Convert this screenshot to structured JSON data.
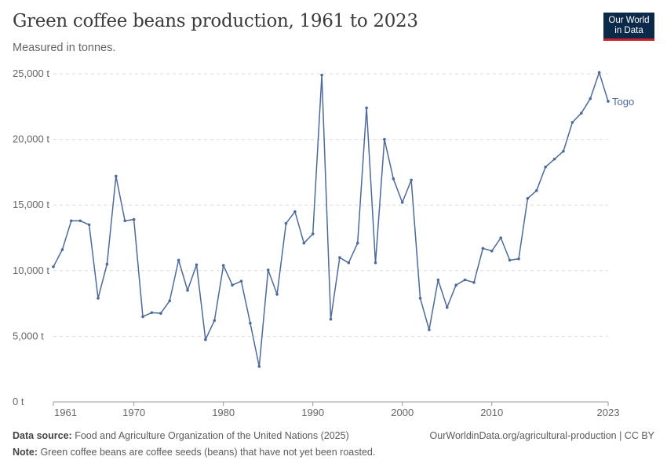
{
  "header": {
    "title": "Green coffee beans production, 1961 to 2023",
    "subtitle": "Measured in tonnes.",
    "logo_line1": "Our World",
    "logo_line2": "in Data"
  },
  "footer": {
    "source_label": "Data source:",
    "source_text": "Food and Agriculture Organization of the United Nations (2025)",
    "url_text": "OurWorldinData.org/agricultural-production | CC BY",
    "note_label": "Note:",
    "note_text": "Green coffee beans are coffee seeds (beans) that have not yet been roasted."
  },
  "colors": {
    "series": "#4c6a9c",
    "grid": "#dddddd",
    "axis_text": "#666666"
  },
  "chart_data": {
    "type": "line",
    "title": "Green coffee beans production, 1961 to 2023",
    "xlabel": "",
    "ylabel": "",
    "xlim": [
      1961,
      2023
    ],
    "ylim": [
      0,
      25000
    ],
    "y_ticks": [
      0,
      5000,
      10000,
      15000,
      20000,
      25000
    ],
    "y_tick_labels": [
      "0 t",
      "5,000 t",
      "10,000 t",
      "15,000 t",
      "20,000 t",
      "25,000 t"
    ],
    "x_ticks": [
      1961,
      1970,
      1980,
      1990,
      2000,
      2010,
      2023
    ],
    "x_tick_labels": [
      "1961",
      "1970",
      "1980",
      "1990",
      "2000",
      "2010",
      "2023"
    ],
    "grid": true,
    "series": [
      {
        "name": "Togo",
        "x": [
          1961,
          1962,
          1963,
          1964,
          1965,
          1966,
          1967,
          1968,
          1969,
          1970,
          1971,
          1972,
          1973,
          1974,
          1975,
          1976,
          1977,
          1978,
          1979,
          1980,
          1981,
          1982,
          1983,
          1984,
          1985,
          1986,
          1987,
          1988,
          1989,
          1990,
          1991,
          1992,
          1993,
          1994,
          1995,
          1996,
          1997,
          1998,
          1999,
          2000,
          2001,
          2002,
          2003,
          2004,
          2005,
          2006,
          2007,
          2008,
          2009,
          2010,
          2011,
          2012,
          2013,
          2014,
          2015,
          2016,
          2017,
          2018,
          2019,
          2020,
          2021,
          2022,
          2023
        ],
        "values": [
          10300,
          11600,
          13800,
          13800,
          13500,
          7900,
          10500,
          17200,
          13800,
          13900,
          6500,
          6800,
          6750,
          7700,
          10800,
          8500,
          10450,
          4750,
          6200,
          10400,
          8900,
          9200,
          6000,
          2700,
          10050,
          8200,
          13600,
          14500,
          12100,
          12800,
          24900,
          6300,
          11000,
          10600,
          12100,
          22400,
          10600,
          20000,
          17000,
          15200,
          16900,
          7900,
          5500,
          9300,
          7200,
          8900,
          9300,
          9100,
          11700,
          11500,
          12500,
          10800,
          10900,
          15500,
          16100,
          17900,
          18500,
          19100,
          21300,
          22000,
          23100,
          25100,
          22900
        ]
      }
    ]
  }
}
